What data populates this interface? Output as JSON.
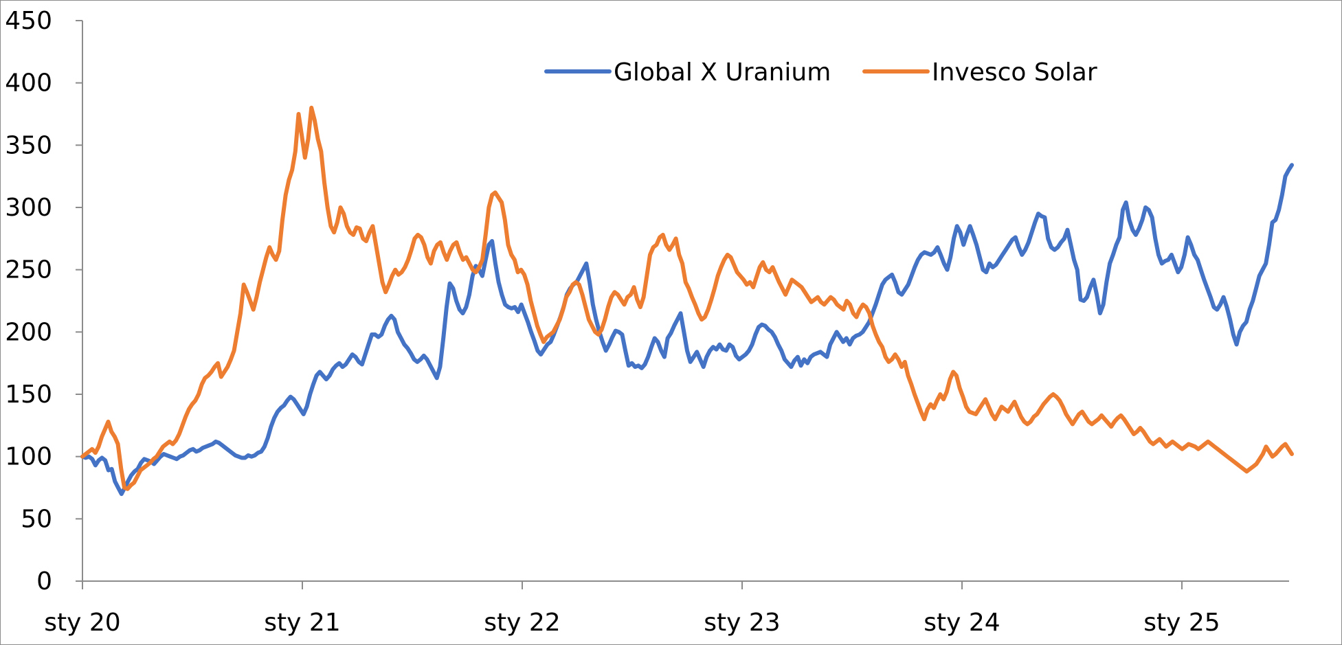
{
  "chart_data": {
    "type": "line",
    "title": "",
    "xlabel": "",
    "ylabel": "",
    "ylim": [
      0,
      450
    ],
    "yticks": [
      0,
      50,
      100,
      150,
      200,
      250,
      300,
      350,
      400,
      450
    ],
    "xticks": [
      "sty 20",
      "sty 21",
      "sty 22",
      "sty 23",
      "sty 24",
      "sty 25"
    ],
    "x_start": "2020-01",
    "x_end": "2025-07",
    "grid": false,
    "legend_position": "top-center",
    "series": [
      {
        "name": "Global X Uranium",
        "color": "#4472c4",
        "values": [
          100,
          99,
          100,
          98,
          93,
          97,
          99,
          97,
          89,
          90,
          80,
          75,
          70,
          75,
          80,
          85,
          88,
          90,
          95,
          98,
          97,
          96,
          94,
          97,
          100,
          102,
          101,
          100,
          99,
          98,
          100,
          101,
          103,
          105,
          106,
          104,
          105,
          107,
          108,
          109,
          110,
          112,
          111,
          109,
          107,
          105,
          103,
          101,
          100,
          99,
          99,
          101,
          100,
          101,
          103,
          104,
          108,
          115,
          124,
          131,
          136,
          139,
          141,
          145,
          148,
          146,
          142,
          138,
          134,
          140,
          150,
          158,
          165,
          168,
          165,
          162,
          165,
          170,
          173,
          175,
          172,
          174,
          178,
          182,
          180,
          176,
          174,
          182,
          190,
          198,
          198,
          196,
          198,
          205,
          210,
          213,
          210,
          200,
          195,
          190,
          187,
          183,
          178,
          176,
          178,
          181,
          178,
          173,
          168,
          163,
          172,
          195,
          220,
          239,
          235,
          225,
          218,
          215,
          220,
          230,
          245,
          253,
          250,
          245,
          258,
          270,
          273,
          255,
          240,
          230,
          222,
          220,
          219,
          220,
          216,
          222,
          215,
          208,
          200,
          193,
          185,
          182,
          186,
          190,
          192,
          198,
          205,
          212,
          220,
          230,
          235,
          238,
          240,
          245,
          250,
          255,
          240,
          222,
          210,
          200,
          192,
          185,
          190,
          196,
          201,
          200,
          198,
          185,
          173,
          175,
          172,
          173,
          171,
          174,
          180,
          188,
          195,
          192,
          185,
          180,
          195,
          199,
          205,
          210,
          215,
          200,
          185,
          176,
          180,
          184,
          178,
          172,
          180,
          185,
          188,
          186,
          190,
          186,
          185,
          190,
          188,
          181,
          178,
          180,
          182,
          185,
          190,
          198,
          204,
          206,
          205,
          202,
          200,
          196,
          190,
          185,
          178,
          175,
          172,
          177,
          180,
          173,
          178,
          175,
          180,
          182,
          183,
          184,
          182,
          180,
          190,
          195,
          200,
          196,
          192,
          195,
          190,
          195,
          197,
          198,
          200,
          204,
          208,
          215,
          222,
          230,
          238,
          242,
          244,
          246,
          240,
          232,
          230,
          234,
          238,
          245,
          252,
          258,
          262,
          264,
          263,
          262,
          264,
          268,
          262,
          255,
          250,
          260,
          275,
          285,
          280,
          270,
          278,
          285,
          278,
          270,
          260,
          250,
          248,
          255,
          252,
          254,
          258,
          262,
          266,
          270,
          274,
          276,
          268,
          262,
          266,
          272,
          280,
          288,
          295,
          293,
          292,
          275,
          268,
          266,
          268,
          272,
          275,
          282,
          270,
          258,
          250,
          226,
          225,
          228,
          236,
          242,
          230,
          215,
          222,
          240,
          255,
          262,
          270,
          276,
          298,
          304,
          290,
          282,
          278,
          283,
          290,
          300,
          298,
          292,
          275,
          262,
          255,
          257,
          258,
          262,
          255,
          248,
          252,
          262,
          276,
          270,
          262,
          258,
          250,
          242,
          235,
          228,
          220,
          218,
          222,
          228,
          220,
          210,
          198,
          190,
          200,
          205,
          208,
          218,
          225,
          235,
          245,
          250,
          255,
          270,
          288,
          290,
          298,
          310,
          325,
          330,
          334
        ]
      },
      {
        "name": "Invesco Solar",
        "color": "#ed7d31",
        "values": [
          100,
          102,
          104,
          106,
          103,
          108,
          116,
          122,
          128,
          120,
          116,
          110,
          90,
          75,
          74,
          77,
          79,
          84,
          89,
          91,
          93,
          95,
          98,
          100,
          104,
          108,
          110,
          112,
          110,
          113,
          118,
          125,
          132,
          138,
          142,
          145,
          150,
          158,
          163,
          165,
          168,
          172,
          175,
          164,
          168,
          172,
          178,
          185,
          200,
          215,
          238,
          232,
          225,
          218,
          228,
          240,
          250,
          260,
          268,
          262,
          258,
          265,
          290,
          310,
          322,
          330,
          345,
          375,
          358,
          340,
          355,
          380,
          370,
          355,
          345,
          320,
          300,
          285,
          280,
          288,
          300,
          295,
          285,
          280,
          278,
          284,
          283,
          275,
          273,
          280,
          285,
          270,
          255,
          240,
          232,
          238,
          245,
          250,
          246,
          248,
          252,
          258,
          266,
          275,
          278,
          276,
          270,
          260,
          255,
          265,
          270,
          272,
          264,
          258,
          265,
          270,
          272,
          264,
          258,
          260,
          255,
          250,
          248,
          252,
          258,
          278,
          300,
          310,
          312,
          308,
          304,
          290,
          270,
          262,
          258,
          248,
          250,
          246,
          238,
          225,
          215,
          205,
          198,
          192,
          196,
          198,
          200,
          205,
          210,
          218,
          228,
          232,
          238,
          240,
          238,
          230,
          220,
          210,
          205,
          200,
          198,
          202,
          210,
          220,
          228,
          232,
          230,
          226,
          222,
          228,
          230,
          236,
          226,
          220,
          228,
          245,
          262,
          268,
          270,
          276,
          278,
          270,
          266,
          270,
          275,
          262,
          255,
          240,
          235,
          228,
          222,
          215,
          210,
          212,
          218,
          226,
          235,
          245,
          252,
          258,
          262,
          260,
          254,
          248,
          245,
          242,
          238,
          240,
          236,
          244,
          252,
          256,
          250,
          248,
          252,
          246,
          240,
          235,
          230,
          236,
          242,
          240,
          238,
          236,
          232,
          228,
          224,
          226,
          228,
          224,
          222,
          225,
          228,
          226,
          222,
          220,
          218,
          225,
          222,
          215,
          212,
          218,
          222,
          220,
          215,
          205,
          198,
          192,
          188,
          180,
          176,
          178,
          182,
          178,
          172,
          176,
          165,
          158,
          150,
          143,
          136,
          130,
          138,
          142,
          139,
          145,
          150,
          146,
          152,
          162,
          168,
          165,
          155,
          148,
          140,
          136,
          135,
          134,
          138,
          142,
          146,
          140,
          134,
          130,
          135,
          140,
          138,
          136,
          140,
          144,
          138,
          132,
          128,
          126,
          128,
          132,
          134,
          138,
          142,
          145,
          148,
          150,
          148,
          145,
          140,
          134,
          130,
          126,
          130,
          134,
          136,
          132,
          128,
          126,
          128,
          130,
          133,
          130,
          127,
          124,
          128,
          131,
          133,
          130,
          126,
          122,
          118,
          120,
          123,
          120,
          116,
          112,
          110,
          112,
          114,
          111,
          108,
          110,
          112,
          110,
          108,
          106,
          108,
          110,
          109,
          108,
          106,
          108,
          110,
          112,
          110,
          108,
          106,
          104,
          102,
          100,
          98,
          96,
          94,
          92,
          90,
          88,
          90,
          92,
          94,
          98,
          102,
          108,
          104,
          100,
          102,
          105,
          108,
          110,
          106,
          102
        ]
      }
    ]
  }
}
